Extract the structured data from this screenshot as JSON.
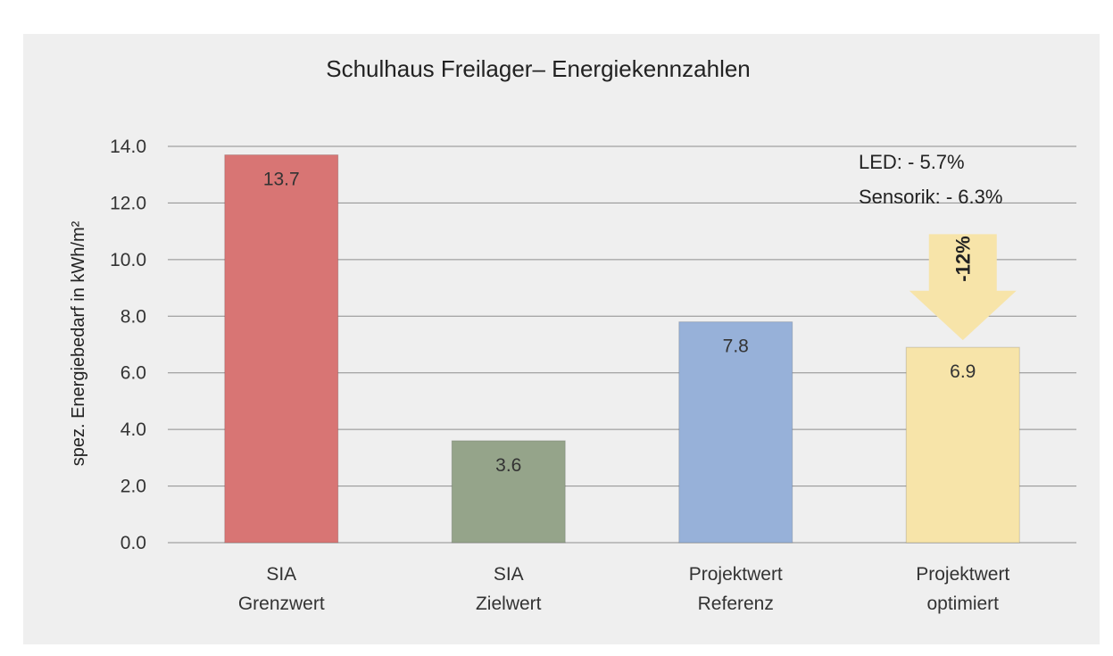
{
  "chart_data": {
    "type": "bar",
    "title": "Schulhaus Freilager– Energiekennzahlen",
    "ylabel": "spez. Energiebedarf in kWh/m²",
    "xlabel": "",
    "ylim": [
      0,
      14
    ],
    "yticks": [
      "0.0",
      "2.0",
      "4.0",
      "6.0",
      "8.0",
      "10.0",
      "12.0",
      "14.0"
    ],
    "categories": [
      [
        "SIA",
        "Grenzwert"
      ],
      [
        "SIA",
        "Zielwert"
      ],
      [
        "Projektwert",
        "Referenz"
      ],
      [
        "Projektwert",
        "optimiert"
      ]
    ],
    "values": [
      13.7,
      3.6,
      7.8,
      6.9
    ],
    "value_labels": [
      "13.7",
      "3.6",
      "7.8",
      "6.9"
    ],
    "colors": [
      "#d87574",
      "#95a48a",
      "#97b1d9",
      "#f7e4a9"
    ],
    "grid": true,
    "legend": "none",
    "annotations": {
      "lines": [
        "LED: - 5.7%",
        "Sensorik: - 6.3%"
      ],
      "arrow_label": "-12%",
      "arrow_color": "#f7e4a9"
    }
  }
}
